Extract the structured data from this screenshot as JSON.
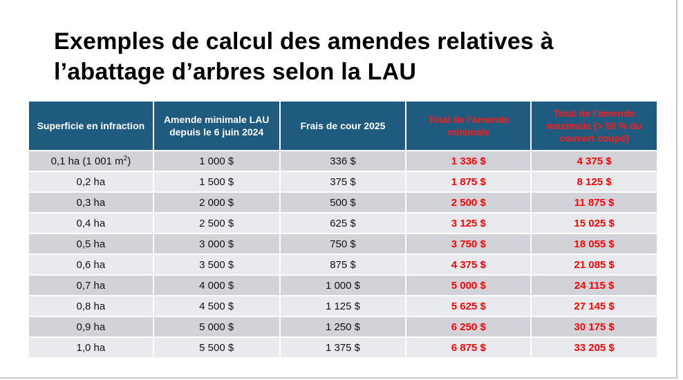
{
  "title": "Exemples de calcul des amendes relatives à l’abattage d’arbres selon la LAU",
  "table": {
    "headers": [
      "Superficie en infraction",
      "Amende minimale LAU depuis le 6 juin 2024",
      "Frais de cour 2025",
      "Total de l’amende minimale",
      "Total de l’amende maximale (> 50 % du couvert coupé)"
    ],
    "rows": [
      {
        "area": "0,1 ha (1 001 m",
        "area_sup": "2",
        "area_end": ")",
        "min_fine": "1 000 $",
        "court_fees": "336 $",
        "total_min": "1 336 $",
        "total_max": "4 375 $"
      },
      {
        "area": "0,2 ha",
        "min_fine": "1 500 $",
        "court_fees": "375 $",
        "total_min": "1 875 $",
        "total_max": "8 125 $"
      },
      {
        "area": "0,3 ha",
        "min_fine": "2 000 $",
        "court_fees": "500 $",
        "total_min": "2 500 $",
        "total_max": "11 875 $"
      },
      {
        "area": "0,4 ha",
        "min_fine": "2 500 $",
        "court_fees": "625 $",
        "total_min": "3 125 $",
        "total_max": "15 025 $"
      },
      {
        "area": "0,5 ha",
        "min_fine": "3 000 $",
        "court_fees": "750 $",
        "total_min": "3 750 $",
        "total_max": "18 055 $"
      },
      {
        "area": "0,6 ha",
        "min_fine": "3 500 $",
        "court_fees": "875 $",
        "total_min": "4 375 $",
        "total_max": "21 085 $"
      },
      {
        "area": "0,7 ha",
        "min_fine": "4 000 $",
        "court_fees": "1 000 $",
        "total_min": "5 000 $",
        "total_max": "24 115 $"
      },
      {
        "area": "0,8 ha",
        "min_fine": "4 500 $",
        "court_fees": "1 125 $",
        "total_min": "5 625 $",
        "total_max": "27 145 $"
      },
      {
        "area": "0,9 ha",
        "min_fine": "5 000 $",
        "court_fees": "1 250 $",
        "total_min": "6 250 $",
        "total_max": "30 175 $"
      },
      {
        "area": "1,0 ha",
        "min_fine": "5 500 $",
        "court_fees": "1 375 $",
        "total_min": "6 875 $",
        "total_max": "33 205 $"
      }
    ]
  },
  "colors": {
    "header_bg": "#1f5b7e",
    "header_text": "#ffffff",
    "highlight_text": "#ff0000",
    "row_dark": "#d1d3d8",
    "row_light": "#e9eaee"
  }
}
